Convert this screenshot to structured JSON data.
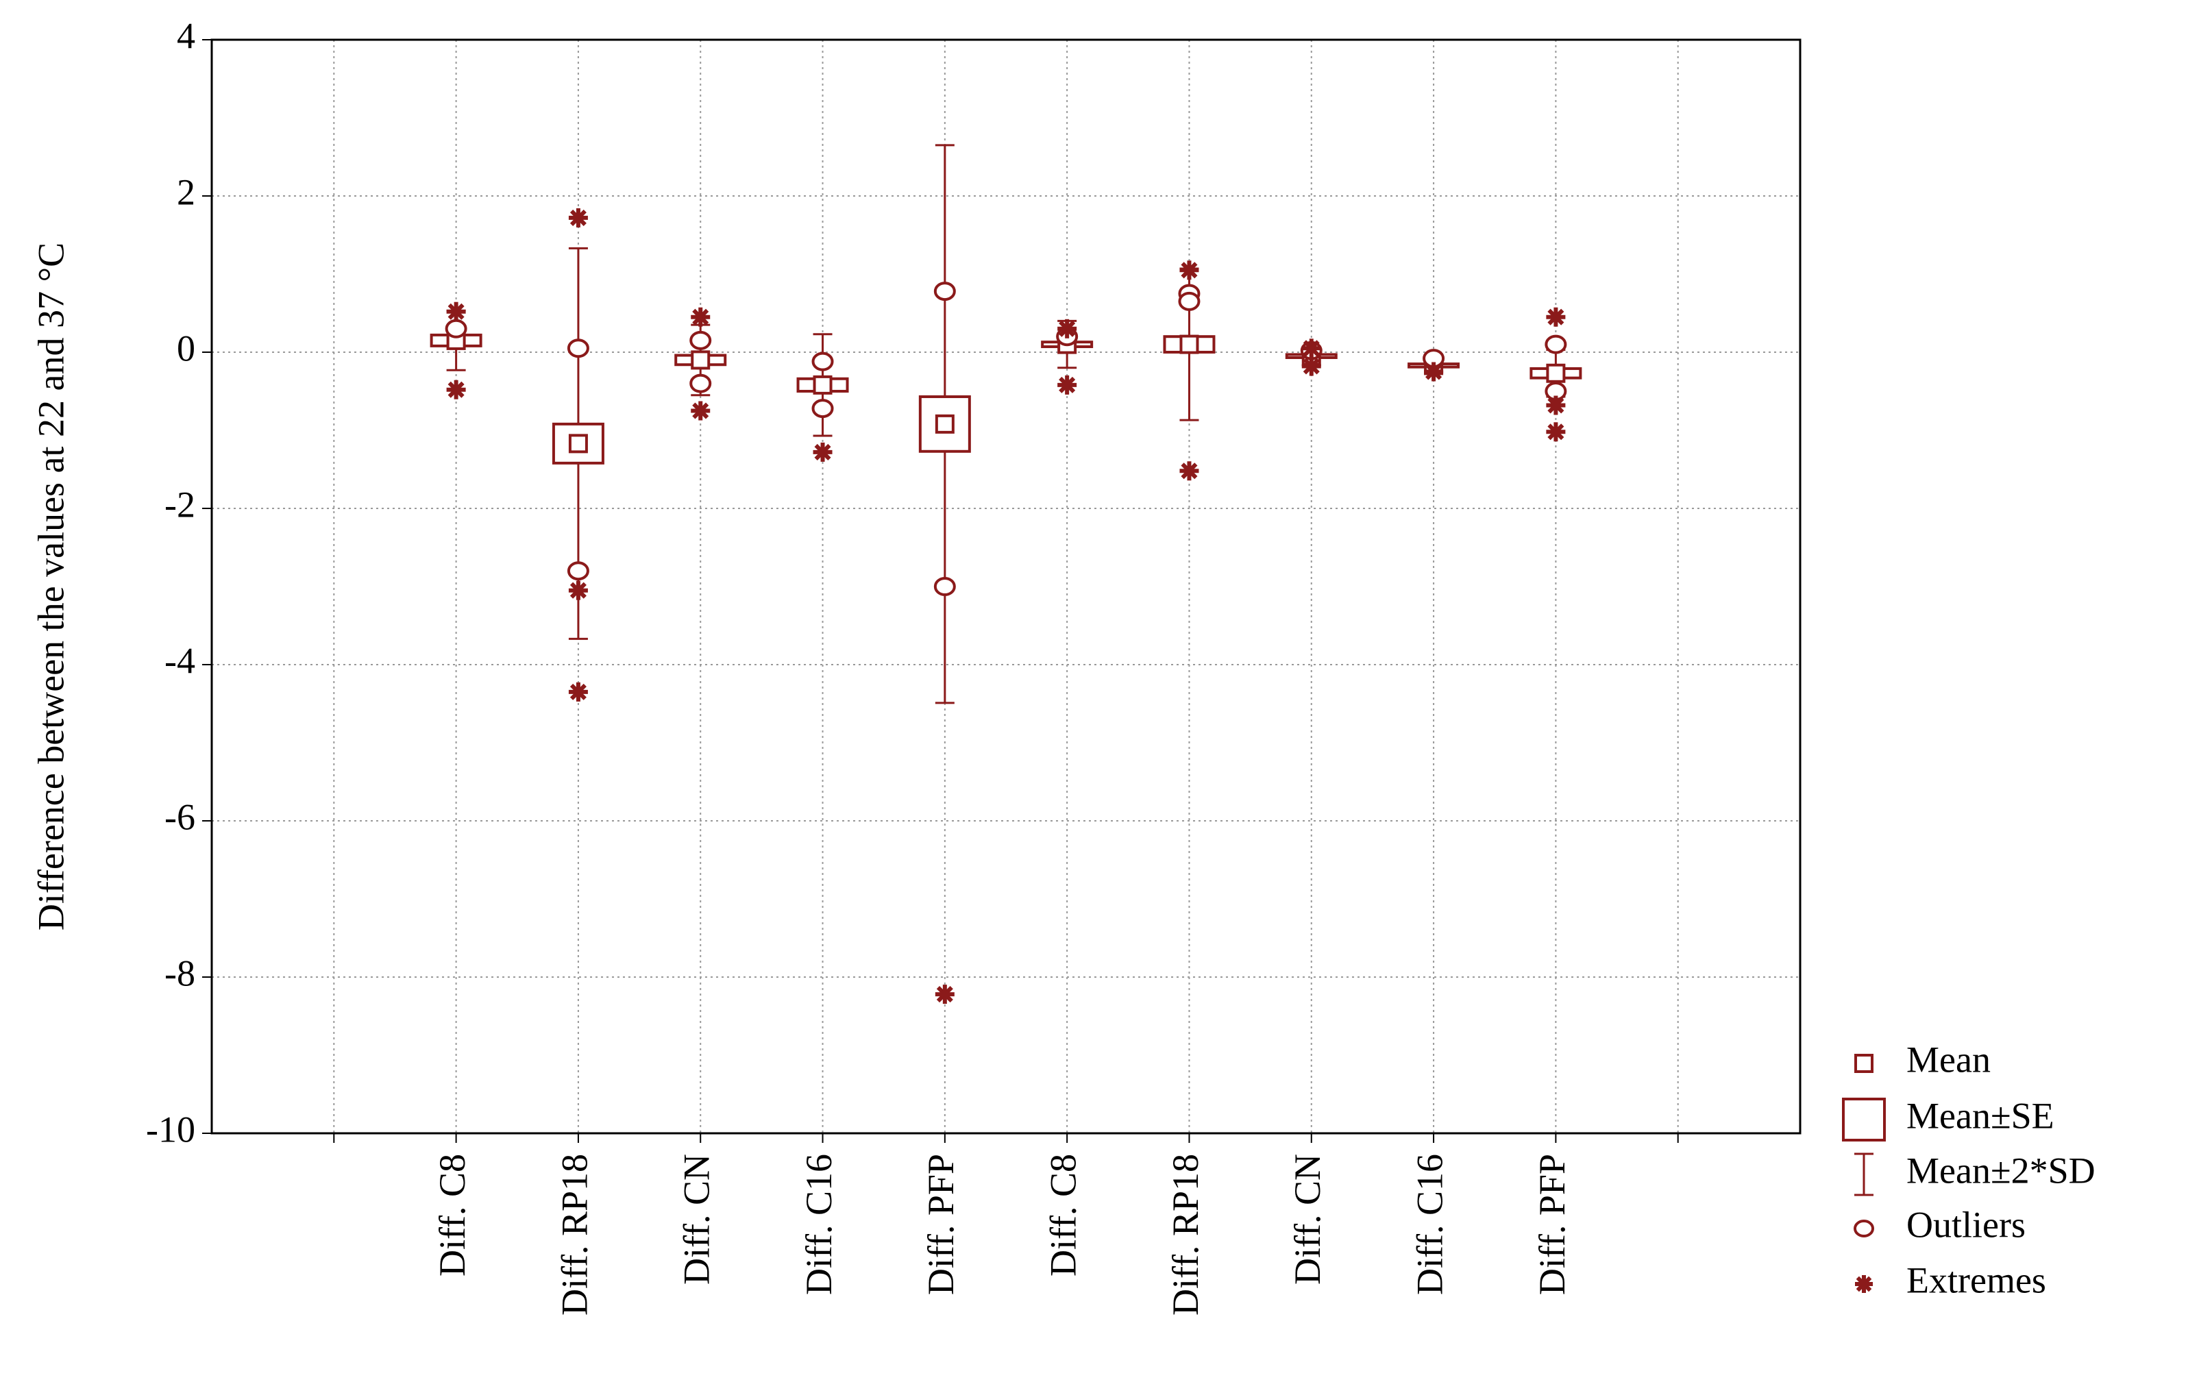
{
  "chart_data": {
    "type": "box",
    "y_label": "Difference between the values at 22 and 37 °C",
    "categories": [
      null,
      "Diff. C8",
      "Diff. RP18",
      "Diff. CN",
      "Diff. C16",
      "Diff. PFP",
      "Diff. C8",
      "Diff. RP18",
      "Diff. CN",
      "Diff. C16",
      "Diff. PFP",
      null
    ],
    "color": "#8b1a1a",
    "ylim": [
      -10,
      4
    ],
    "yticks": [
      4,
      2,
      0,
      -2,
      -4,
      -6,
      -8,
      -10
    ],
    "grid": true,
    "legend": "right",
    "series": [
      {
        "name": "Mean",
        "values": [
          null,
          0.15,
          -1.17,
          -0.1,
          -0.42,
          -0.92,
          0.1,
          0.1,
          -0.05,
          -0.17,
          -0.27,
          null
        ]
      },
      {
        "name": "Mean±SE",
        "values": [
          null,
          0.07,
          0.25,
          0.06,
          0.08,
          0.35,
          0.03,
          0.1,
          0.02,
          0.02,
          0.06,
          null
        ]
      },
      {
        "name": "Mean±2*SD",
        "values": [
          null,
          0.38,
          2.5,
          0.45,
          0.65,
          3.57,
          0.3,
          0.97,
          0.12,
          0.08,
          0.3,
          null
        ]
      },
      {
        "name": "Outliers",
        "values": [
          null,
          [
            0.3
          ],
          [
            0.05,
            -2.8
          ],
          [
            0.15,
            -0.4
          ],
          [
            -0.12,
            -0.72
          ],
          [
            0.78,
            -3.0
          ],
          [
            0.2
          ],
          [
            0.75,
            0.65
          ],
          [
            0.02
          ],
          [
            -0.08
          ],
          [
            0.1,
            -0.5
          ],
          null
        ]
      },
      {
        "name": "Extremes",
        "values": [
          null,
          [
            0.52,
            -0.48
          ],
          [
            1.72,
            -3.05,
            -4.35
          ],
          [
            0.45,
            -0.75
          ],
          [
            -1.28
          ],
          [
            -8.22
          ],
          [
            0.3,
            -0.42
          ],
          [
            1.05,
            -1.52
          ],
          [
            0.05,
            -0.18
          ],
          [
            -0.25
          ],
          [
            0.45,
            -0.68,
            -1.02
          ],
          null
        ]
      }
    ]
  }
}
